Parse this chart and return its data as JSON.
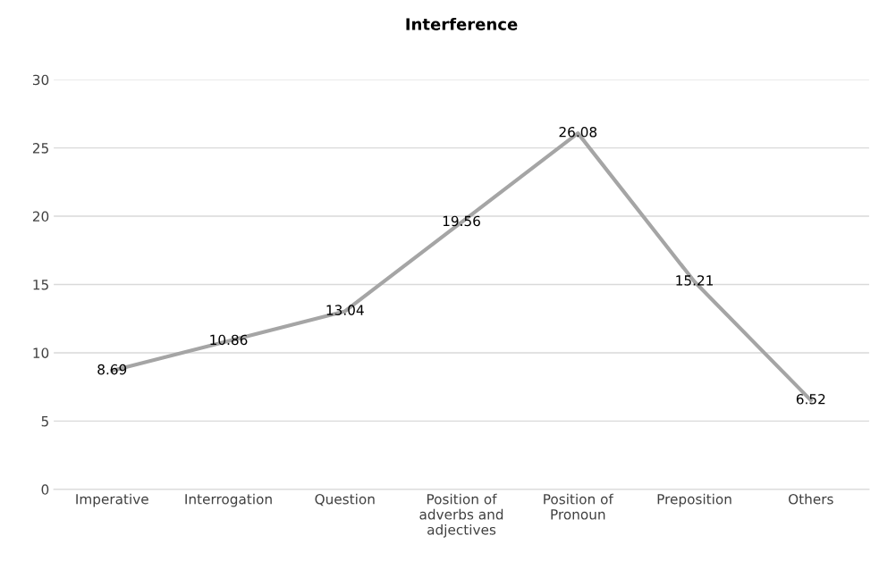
{
  "chart_data": {
    "type": "line",
    "title": "Interference",
    "categories": [
      "Imperative",
      "Interrogation",
      "Question",
      "Position of adverbs and adjectives",
      "Position of Pronoun",
      "Preposition",
      "Others"
    ],
    "series": [
      {
        "color": "#a5a5a5",
        "values": [
          8.69,
          10.86,
          13.04,
          19.56,
          26.08,
          15.21,
          6.52
        ]
      }
    ],
    "ylim": [
      0,
      30
    ],
    "yticks": [
      0,
      5,
      10,
      15,
      20,
      25,
      30
    ],
    "grid": "y",
    "data_labels": true,
    "marker": "none",
    "line_style": "solid"
  }
}
